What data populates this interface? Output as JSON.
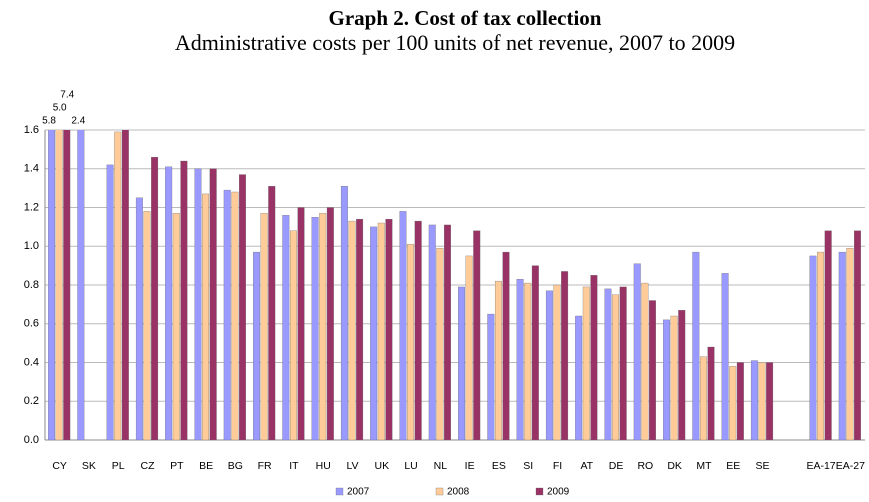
{
  "chart_data": {
    "type": "bar",
    "title": "Graph 2. Cost of tax collection",
    "subtitle": "Administrative costs per 100 units of net revenue, 2007 to 2009",
    "categories": [
      "CY",
      "SK",
      "PL",
      "CZ",
      "PT",
      "BE",
      "BG",
      "FR",
      "IT",
      "HU",
      "LV",
      "UK",
      "LU",
      "NL",
      "IE",
      "ES",
      "SI",
      "FI",
      "AT",
      "DE",
      "RO",
      "DK",
      "MT",
      "EE",
      "SE",
      null,
      "EA-17",
      "EA-27"
    ],
    "series": [
      {
        "name": "2007",
        "color": "#9999ff",
        "values": [
          5.8,
          2.4,
          1.42,
          1.25,
          1.41,
          1.4,
          1.29,
          0.97,
          1.16,
          1.15,
          1.31,
          1.1,
          1.18,
          1.11,
          0.79,
          0.65,
          0.83,
          0.77,
          0.64,
          0.78,
          0.91,
          0.62,
          0.97,
          0.86,
          0.41,
          null,
          0.95,
          0.97
        ],
        "value_labels": [
          "5.8",
          "2.4",
          null,
          null,
          null,
          null,
          null,
          null,
          null,
          null,
          null,
          null,
          null,
          null,
          null,
          null,
          null,
          null,
          null,
          null,
          null,
          null,
          null,
          null,
          null,
          null,
          null,
          null
        ]
      },
      {
        "name": "2008",
        "color": "#ffcc99",
        "values": [
          5.0,
          null,
          1.59,
          1.18,
          1.17,
          1.27,
          1.28,
          1.17,
          1.08,
          1.17,
          1.13,
          1.12,
          1.01,
          0.99,
          0.95,
          0.82,
          0.81,
          0.8,
          0.79,
          0.75,
          0.81,
          0.64,
          0.43,
          0.38,
          0.4,
          null,
          0.97,
          0.99
        ],
        "value_labels": [
          "5.0",
          null,
          null,
          null,
          null,
          null,
          null,
          null,
          null,
          null,
          null,
          null,
          null,
          null,
          null,
          null,
          null,
          null,
          null,
          null,
          null,
          null,
          null,
          null,
          null,
          null,
          null,
          null
        ]
      },
      {
        "name": "2009",
        "color": "#993366",
        "values": [
          7.4,
          null,
          1.62,
          1.46,
          1.44,
          1.4,
          1.37,
          1.31,
          1.2,
          1.2,
          1.14,
          1.14,
          1.13,
          1.11,
          1.08,
          0.97,
          0.9,
          0.87,
          0.85,
          0.79,
          0.72,
          0.67,
          0.48,
          0.4,
          0.4,
          null,
          1.08,
          1.08
        ],
        "value_labels": [
          "7.4",
          null,
          null,
          null,
          null,
          null,
          null,
          null,
          null,
          null,
          null,
          null,
          null,
          null,
          null,
          null,
          null,
          null,
          null,
          null,
          null,
          null,
          null,
          null,
          null,
          null,
          null,
          null
        ]
      }
    ],
    "ylim": [
      0,
      1.6
    ],
    "yticks": [
      {
        "value": 0,
        "label": "0.0"
      },
      {
        "value": 0.2,
        "label": "0.2"
      },
      {
        "value": 0.4,
        "label": "0.4"
      },
      {
        "value": 0.6,
        "label": "0.6"
      },
      {
        "value": 0.8,
        "label": "0.8"
      },
      {
        "value": 1.0,
        "label": "1.0"
      },
      {
        "value": 1.2,
        "label": "1.2"
      },
      {
        "value": 1.4,
        "label": "1.4"
      },
      {
        "value": 1.6,
        "label": "1.6"
      }
    ],
    "grid": true,
    "legend": "bottom"
  }
}
